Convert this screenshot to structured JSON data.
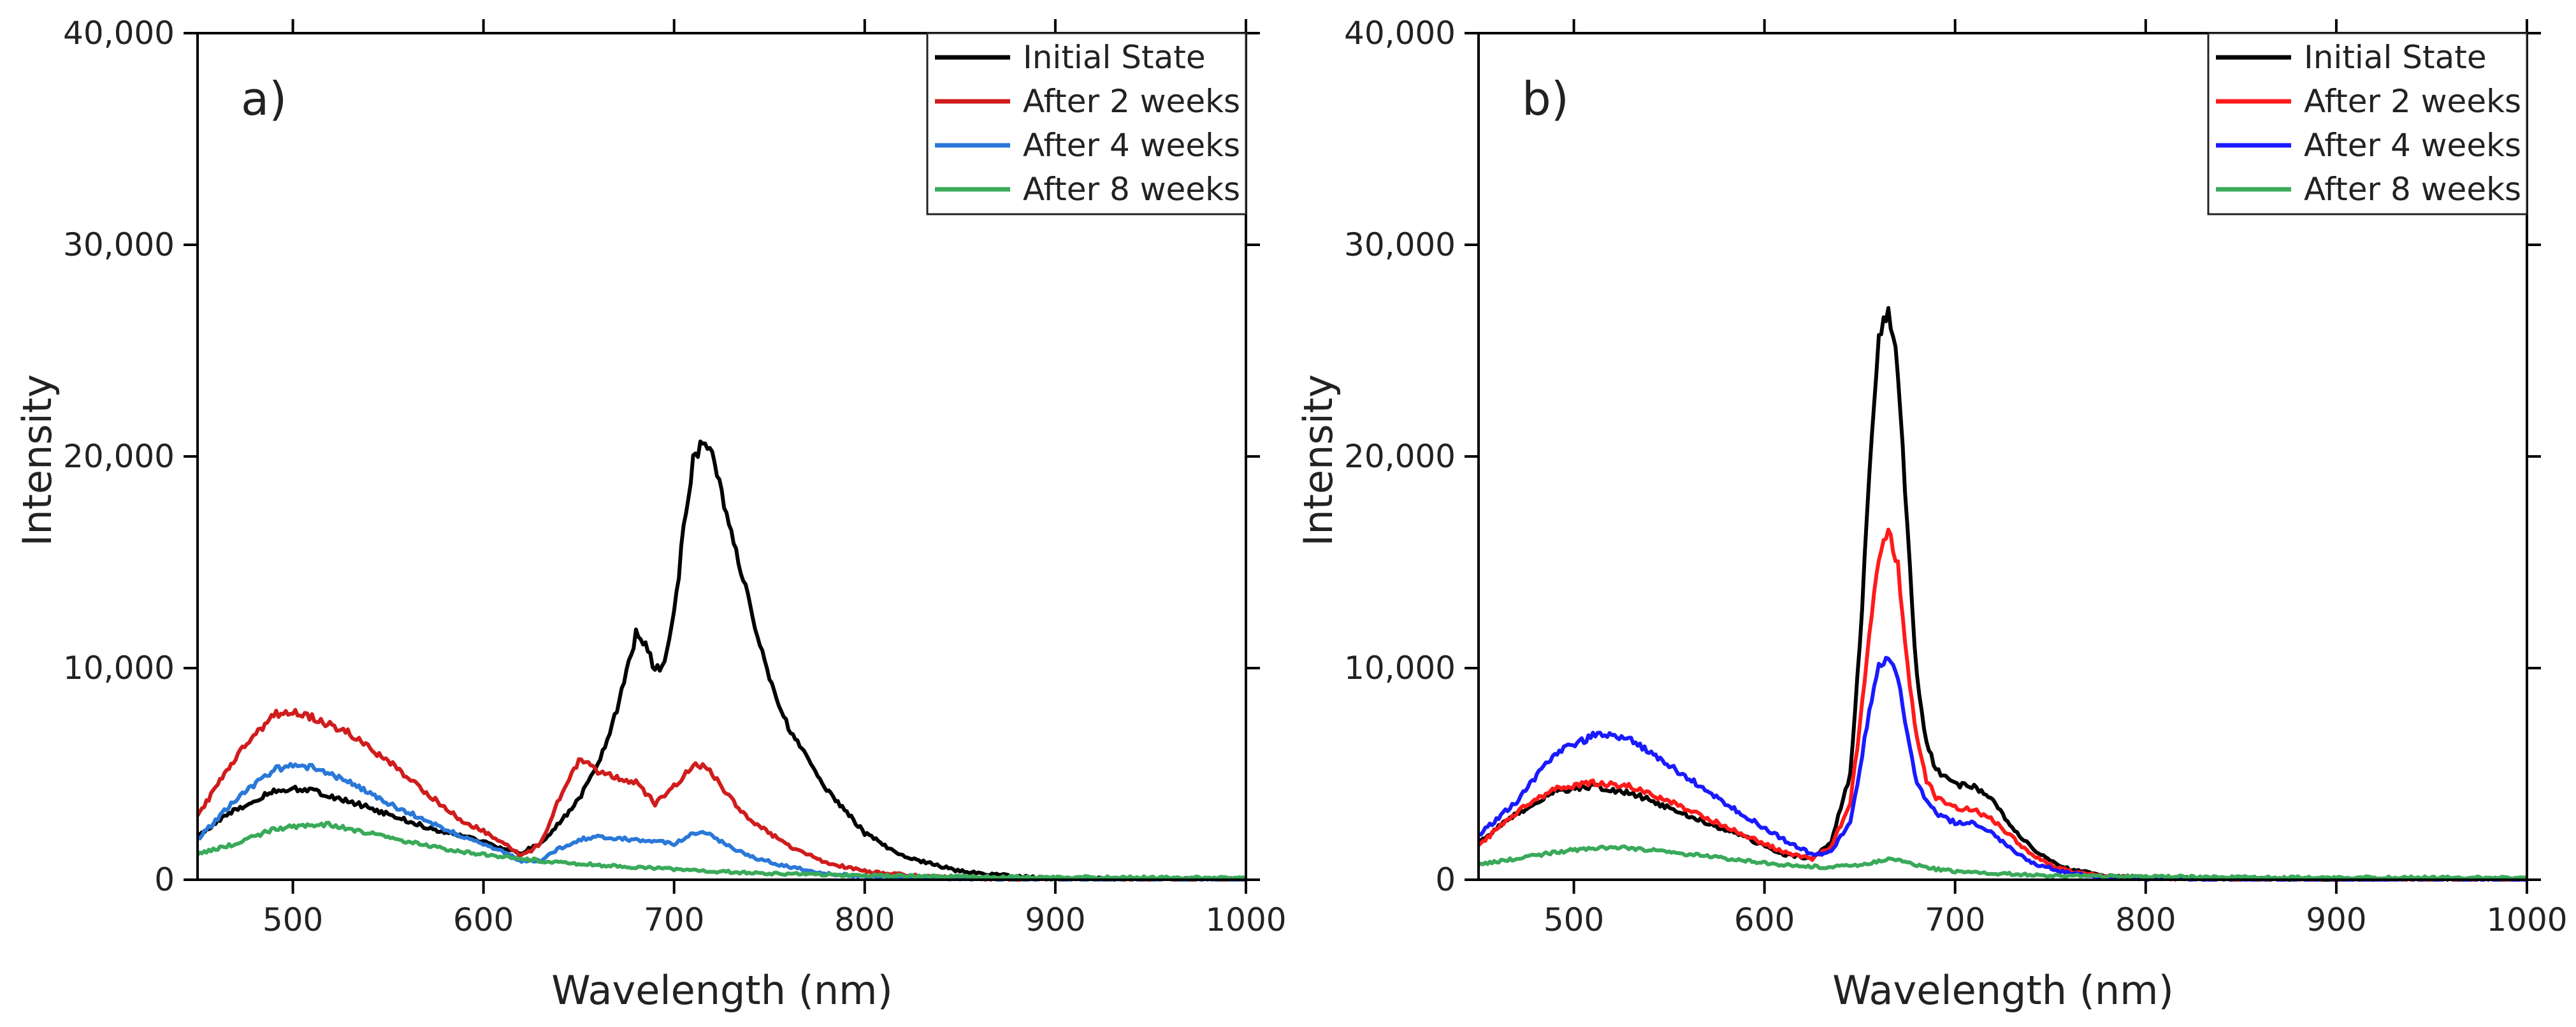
{
  "chart_data": [
    {
      "type": "line",
      "panel_label": "a)",
      "xlabel": "Wavelength (nm)",
      "ylabel": "Intensity",
      "xlim": [
        450,
        1000
      ],
      "ylim": [
        0,
        40000
      ],
      "xticks": [
        500,
        600,
        700,
        800,
        900,
        1000
      ],
      "xtick_labels": [
        "500",
        "600",
        "700",
        "800",
        "900",
        "1000"
      ],
      "yticks": [
        0,
        10000,
        20000,
        30000,
        40000
      ],
      "ytick_labels": [
        "0",
        "10,000",
        "20,000",
        "30,000",
        "40,000"
      ],
      "grid": false,
      "legend_position": "top-right",
      "series": [
        {
          "name": "Initial State",
          "color": "#000000",
          "x": [
            450,
            470,
            490,
            500,
            510,
            530,
            550,
            570,
            590,
            600,
            610,
            620,
            630,
            640,
            650,
            660,
            670,
            680,
            685,
            690,
            695,
            700,
            705,
            710,
            715,
            720,
            730,
            740,
            750,
            760,
            780,
            800,
            820,
            850,
            880,
            900,
            950,
            1000
          ],
          "y": [
            2100,
            3300,
            4200,
            4300,
            4200,
            3700,
            3100,
            2500,
            2000,
            1800,
            1500,
            1300,
            1700,
            2700,
            3800,
            5400,
            8000,
            11600,
            11200,
            9900,
            10200,
            12500,
            16500,
            19800,
            20600,
            20000,
            16600,
            12800,
            9500,
            7200,
            4300,
            2200,
            1100,
            400,
            150,
            80,
            40,
            30
          ]
        },
        {
          "name": "After 2 weeks",
          "color": "#d01c1c",
          "x": [
            450,
            470,
            490,
            500,
            510,
            530,
            550,
            570,
            590,
            600,
            610,
            620,
            630,
            640,
            650,
            655,
            660,
            670,
            680,
            690,
            700,
            710,
            715,
            720,
            730,
            740,
            760,
            780,
            800,
            830,
            860,
            900,
            950,
            1000
          ],
          "y": [
            3000,
            5800,
            7800,
            7900,
            7700,
            6900,
            5600,
            4100,
            2700,
            2300,
            1800,
            1100,
            1700,
            3900,
            5600,
            5500,
            5100,
            4800,
            4600,
            3600,
            4400,
            5400,
            5400,
            5000,
            3800,
            2800,
            1600,
            800,
            400,
            150,
            60,
            30,
            20,
            15
          ]
        },
        {
          "name": "After 4 weeks",
          "color": "#2a78d8",
          "x": [
            450,
            470,
            490,
            500,
            510,
            530,
            550,
            570,
            590,
            600,
            610,
            620,
            630,
            640,
            650,
            660,
            680,
            700,
            710,
            715,
            720,
            730,
            740,
            760,
            780,
            800,
            850,
            900,
            950,
            1000
          ],
          "y": [
            1900,
            3800,
            5200,
            5400,
            5300,
            4600,
            3600,
            2800,
            2000,
            1700,
            1300,
            900,
            900,
            1500,
            1900,
            2000,
            1900,
            1700,
            2200,
            2300,
            2100,
            1500,
            1100,
            600,
            300,
            150,
            50,
            20,
            10,
            10
          ]
        },
        {
          "name": "After 8 weeks",
          "color": "#3aaa5a",
          "x": [
            450,
            470,
            490,
            510,
            520,
            530,
            550,
            570,
            590,
            610,
            630,
            650,
            680,
            700,
            720,
            750,
            800,
            850,
            900,
            950,
            1000
          ],
          "y": [
            1200,
            1700,
            2400,
            2600,
            2600,
            2400,
            2000,
            1600,
            1300,
            1100,
            900,
            750,
            600,
            500,
            400,
            300,
            200,
            150,
            120,
            100,
            100
          ]
        }
      ],
      "legend_entries": [
        "Initial State",
        "After 2 weeks",
        "After 4 weeks",
        "After 8 weeks"
      ]
    },
    {
      "type": "line",
      "panel_label": "b)",
      "xlabel": "Wavelength (nm)",
      "ylabel": "Intensity",
      "xlim": [
        450,
        1000
      ],
      "ylim": [
        0,
        40000
      ],
      "xticks": [
        500,
        600,
        700,
        800,
        900,
        1000
      ],
      "xtick_labels": [
        "500",
        "600",
        "700",
        "800",
        "900",
        "1000"
      ],
      "yticks": [
        0,
        10000,
        20000,
        30000,
        40000
      ],
      "ytick_labels": [
        "0",
        "10,000",
        "20,000",
        "30,000",
        "40,000"
      ],
      "grid": false,
      "legend_position": "top-right",
      "series": [
        {
          "name": "Initial State",
          "color": "#000000",
          "x": [
            450,
            470,
            490,
            510,
            530,
            550,
            570,
            590,
            610,
            625,
            635,
            645,
            650,
            655,
            660,
            665,
            670,
            675,
            680,
            685,
            690,
            700,
            710,
            720,
            730,
            740,
            750,
            760,
            780,
            800,
            850,
            900,
            950,
            1000
          ],
          "y": [
            1800,
            3100,
            4200,
            4400,
            4100,
            3400,
            2700,
            2000,
            1200,
            1000,
            1800,
            5000,
            11000,
            19000,
            25500,
            27200,
            24000,
            16500,
            9500,
            6500,
            5200,
            4500,
            4400,
            3700,
            2500,
            1500,
            900,
            500,
            200,
            100,
            40,
            20,
            10,
            10
          ]
        },
        {
          "name": "After 2 weeks",
          "color": "#ff1a1a",
          "x": [
            450,
            470,
            490,
            510,
            530,
            550,
            570,
            590,
            610,
            625,
            635,
            645,
            650,
            655,
            660,
            665,
            670,
            675,
            680,
            685,
            690,
            700,
            710,
            720,
            730,
            740,
            750,
            760,
            780,
            800,
            850,
            900,
            950,
            1000
          ],
          "y": [
            1600,
            3200,
            4300,
            4600,
            4400,
            3700,
            2900,
            2100,
            1300,
            1000,
            1600,
            3600,
            7200,
            11500,
            15300,
            16400,
            14800,
            10200,
            6600,
            4700,
            3900,
            3400,
            3300,
            2800,
            2000,
            1200,
            700,
            400,
            150,
            80,
            30,
            15,
            10,
            10
          ]
        },
        {
          "name": "After 4 weeks",
          "color": "#1a1aff",
          "x": [
            450,
            470,
            490,
            510,
            520,
            530,
            550,
            570,
            590,
            610,
            625,
            635,
            645,
            650,
            655,
            660,
            665,
            670,
            675,
            680,
            690,
            700,
            710,
            720,
            730,
            740,
            760,
            780,
            800,
            850,
            900,
            950,
            1000
          ],
          "y": [
            2100,
            3700,
            6000,
            6800,
            6900,
            6600,
            5400,
            4200,
            3000,
            1900,
            1200,
            1300,
            2800,
            5200,
            8000,
            10000,
            10500,
            9500,
            6800,
            4500,
            3100,
            2700,
            2700,
            2200,
            1400,
            800,
            300,
            100,
            50,
            20,
            10,
            10,
            10
          ]
        },
        {
          "name": "After 8 weeks",
          "color": "#3aaa5a",
          "x": [
            450,
            470,
            490,
            510,
            530,
            550,
            570,
            590,
            610,
            630,
            650,
            660,
            665,
            670,
            680,
            690,
            700,
            720,
            750,
            800,
            850,
            900,
            950,
            1000
          ],
          "y": [
            700,
            1000,
            1300,
            1500,
            1500,
            1300,
            1100,
            900,
            700,
            600,
            700,
            900,
            1000,
            900,
            700,
            500,
            400,
            300,
            200,
            150,
            120,
            100,
            100,
            100
          ]
        }
      ],
      "legend_entries": [
        "Initial State",
        "After 2 weeks",
        "After 4 weeks",
        "After 8 weeks"
      ]
    }
  ]
}
